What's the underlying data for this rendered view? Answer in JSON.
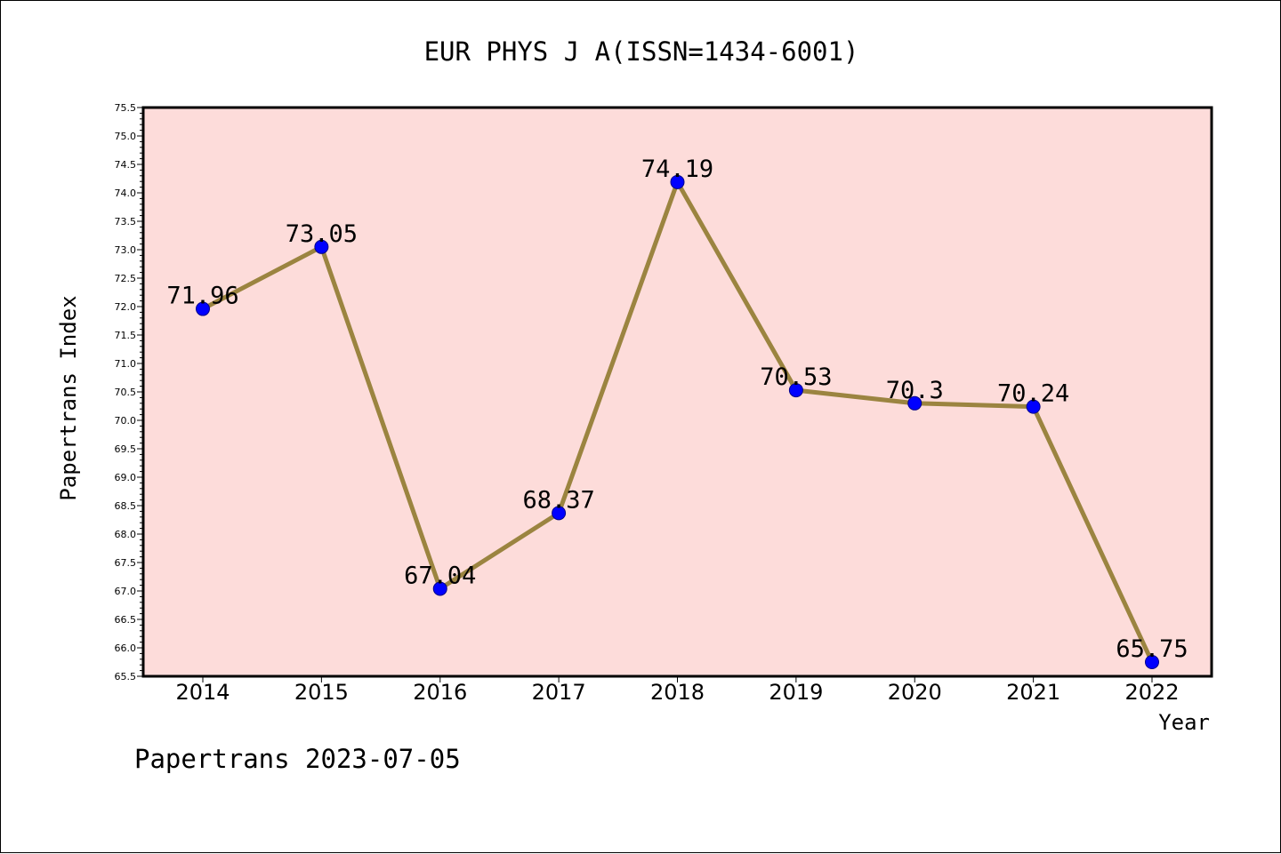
{
  "chart_data": {
    "type": "line",
    "title": "EUR PHYS J A(ISSN=1434-6001)",
    "xlabel": "Year",
    "ylabel": "Papertrans Index",
    "categories": [
      "2014",
      "2015",
      "2016",
      "2017",
      "2018",
      "2019",
      "2020",
      "2021",
      "2022"
    ],
    "series": [
      {
        "values": [
          71.96,
          73.05,
          67.04,
          68.37,
          74.19,
          70.53,
          70.3,
          70.24,
          65.75
        ],
        "labels": [
          "71.96",
          "73.05",
          "67.04",
          "68.37",
          "74.19",
          "70.53",
          "70.3",
          "70.24",
          "65.75"
        ]
      }
    ],
    "ylim": [
      65.5,
      75.5
    ],
    "ytick_step": 0.5,
    "ytick_labels": [
      "65.5",
      "66.0",
      "66.5",
      "67.0",
      "67.5",
      "68.0",
      "68.5",
      "69.0",
      "69.5",
      "70.0",
      "70.5",
      "71.0",
      "71.5",
      "72.0",
      "72.5",
      "73.0",
      "73.5",
      "74.0",
      "74.5",
      "75.0",
      "75.5"
    ],
    "grid": false,
    "legend": "none",
    "footer": "Papertrans 2023-07-05",
    "colors": {
      "plot_background": "#FDDCDA",
      "line": "#9B8440",
      "marker": "#0000FF",
      "axis": "#000000"
    }
  }
}
